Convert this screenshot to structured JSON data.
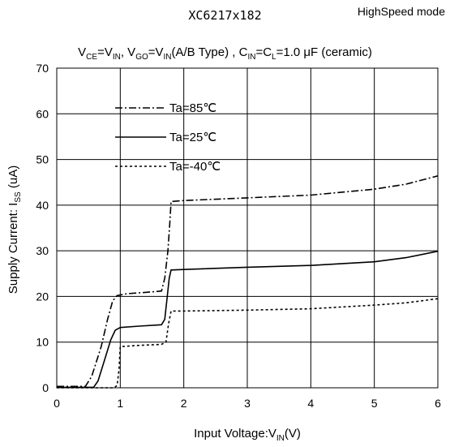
{
  "chart_data": {
    "type": "line",
    "title": "XC6217x182",
    "mode": "HighSpeed mode",
    "conditions": {
      "vce": "V",
      "vce_sub": "CE",
      "vce_eq": "=V",
      "vce_eq_sub": "IN",
      "vgo": ", V",
      "vgo_sub": "GO",
      "vgo_eq": "=V",
      "vgo_eq_sub": "IN",
      "type_text": "(A/B Type) , C",
      "cin_sub": "IN",
      "cl_eq": "=C",
      "cl_sub": "L",
      "tail": "=1.0 μF (ceramic)"
    },
    "xlabel": {
      "text": "Input Voltage:V",
      "sub": "IN",
      "unit": "(V)"
    },
    "ylabel": {
      "text": "Supply Current: I",
      "sub": "SS",
      "unit": " (uA)"
    },
    "xlim": [
      0,
      6
    ],
    "ylim": [
      0,
      70
    ],
    "x_ticks": [
      "0",
      "1",
      "2",
      "3",
      "4",
      "5",
      "6"
    ],
    "y_ticks": [
      "0",
      "10",
      "20",
      "30",
      "40",
      "50",
      "60",
      "70"
    ],
    "grid": true,
    "legend_position": "top-left",
    "series": [
      {
        "name": "Ta=85℃",
        "dash": "dashdot",
        "points": [
          [
            0,
            0.3
          ],
          [
            0.45,
            0.3
          ],
          [
            0.55,
            2.5
          ],
          [
            0.7,
            9
          ],
          [
            0.8,
            15
          ],
          [
            0.88,
            19
          ],
          [
            0.95,
            20.2
          ],
          [
            1.1,
            20.6
          ],
          [
            1.5,
            21.0
          ],
          [
            1.65,
            21.2
          ],
          [
            1.7,
            24
          ],
          [
            1.75,
            30
          ],
          [
            1.78,
            36
          ],
          [
            1.8,
            40.8
          ],
          [
            2,
            41.0
          ],
          [
            3,
            41.6
          ],
          [
            4,
            42.2
          ],
          [
            5,
            43.5
          ],
          [
            5.5,
            44.6
          ],
          [
            6,
            46.4
          ]
        ]
      },
      {
        "name": "Ta=25℃",
        "dash": "solid",
        "points": [
          [
            0,
            0.1
          ],
          [
            0.58,
            0.1
          ],
          [
            0.65,
            1.5
          ],
          [
            0.75,
            6
          ],
          [
            0.85,
            10.5
          ],
          [
            0.92,
            12.6
          ],
          [
            1.0,
            13.2
          ],
          [
            1.3,
            13.5
          ],
          [
            1.65,
            13.8
          ],
          [
            1.7,
            15
          ],
          [
            1.74,
            20
          ],
          [
            1.77,
            24
          ],
          [
            1.8,
            25.8
          ],
          [
            2,
            25.9
          ],
          [
            3,
            26.4
          ],
          [
            4,
            26.8
          ],
          [
            5,
            27.6
          ],
          [
            5.5,
            28.5
          ],
          [
            6,
            29.9
          ]
        ]
      },
      {
        "name": "Ta=-40℃",
        "dash": "dotted",
        "points": [
          [
            0,
            0
          ],
          [
            0.9,
            0
          ],
          [
            0.95,
            0.5
          ],
          [
            0.98,
            4
          ],
          [
            1.0,
            9
          ],
          [
            1.3,
            9.3
          ],
          [
            1.65,
            9.5
          ],
          [
            1.72,
            10
          ],
          [
            1.76,
            14
          ],
          [
            1.8,
            16.8
          ],
          [
            2,
            16.8
          ],
          [
            3,
            17.0
          ],
          [
            4,
            17.3
          ],
          [
            5,
            18.1
          ],
          [
            5.5,
            18.6
          ],
          [
            6,
            19.5
          ]
        ]
      }
    ]
  }
}
